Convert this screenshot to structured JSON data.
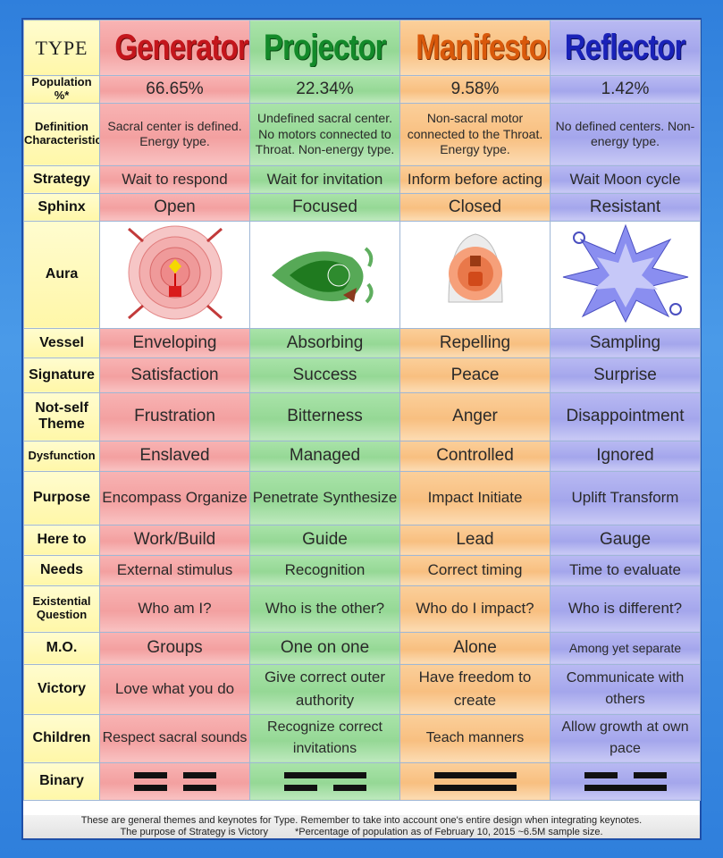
{
  "header": {
    "type_label": "TYPE",
    "types": [
      "Generator",
      "Projector",
      "Manifestor",
      "Reflector"
    ]
  },
  "rows": [
    {
      "label": "Population %*",
      "values": [
        "66.65%",
        "22.34%",
        "9.58%",
        "1.42%"
      ]
    },
    {
      "label": "Definition Characteristics",
      "values": [
        "Sacral center is defined. Energy type.",
        "Undefined sacral center. No motors connected to Throat. Non-energy type.",
        "Non-sacral motor connected to the Throat. Energy type.",
        "No defined centers. Non-energy type."
      ]
    },
    {
      "label": "Strategy",
      "values": [
        "Wait to respond",
        "Wait for invitation",
        "Inform before acting",
        "Wait Moon cycle"
      ]
    },
    {
      "label": "Sphinx",
      "values": [
        "Open",
        "Focused",
        "Closed",
        "Resistant"
      ]
    },
    {
      "label": "Aura",
      "values": [
        "",
        "",
        "",
        ""
      ]
    },
    {
      "label": "Vessel",
      "values": [
        "Enveloping",
        "Absorbing",
        "Repelling",
        "Sampling"
      ]
    },
    {
      "label": "Signature",
      "values": [
        "Satisfaction",
        "Success",
        "Peace",
        "Surprise"
      ]
    },
    {
      "label": "Not-self Theme",
      "values": [
        "Frustration",
        "Bitterness",
        "Anger",
        "Disappointment"
      ]
    },
    {
      "label": "Dysfunction",
      "values": [
        "Enslaved",
        "Managed",
        "Controlled",
        "Ignored"
      ]
    },
    {
      "label": "Purpose",
      "values": [
        "Encompass Organize",
        "Penetrate Synthesize",
        "Impact Initiate",
        "Uplift Transform"
      ]
    },
    {
      "label": "Here to",
      "values": [
        "Work/Build",
        "Guide",
        "Lead",
        "Gauge"
      ]
    },
    {
      "label": "Needs",
      "values": [
        "External stimulus",
        "Recognition",
        "Correct timing",
        "Time to evaluate"
      ]
    },
    {
      "label": "Existential Question",
      "values": [
        "Who am I?",
        "Who is the other?",
        "Who do I impact?",
        "Who is different?"
      ]
    },
    {
      "label": "M.O.",
      "values": [
        "Groups",
        "One on one",
        "Alone",
        "Among yet separate"
      ]
    },
    {
      "label": "Victory",
      "values": [
        "Love what you do",
        "Give correct outer authority",
        "Have freedom to create",
        "Communicate with others"
      ]
    },
    {
      "label": "Children",
      "values": [
        "Respect sacral sounds",
        "Recognize correct invitations",
        "Teach manners",
        "Allow growth at own pace"
      ]
    },
    {
      "label": "Binary",
      "values": [
        "",
        "",
        "",
        ""
      ]
    }
  ],
  "binary": [
    [
      "broken",
      "broken"
    ],
    [
      "full",
      "broken"
    ],
    [
      "full",
      "full"
    ],
    [
      "broken",
      "full"
    ]
  ],
  "footer": {
    "line1": "These are general themes and keynotes for Type.  Remember to take into account one's entire design when integrating keynotes.",
    "line2a": "The purpose of Strategy is Victory",
    "line2b": "*Percentage of population as of February 10, 2015 ~6.5M sample size."
  },
  "colors": {
    "generator": "#c4161c",
    "projector": "#138a2a",
    "manifestor": "#d9590b",
    "reflector": "#1a22b8"
  }
}
